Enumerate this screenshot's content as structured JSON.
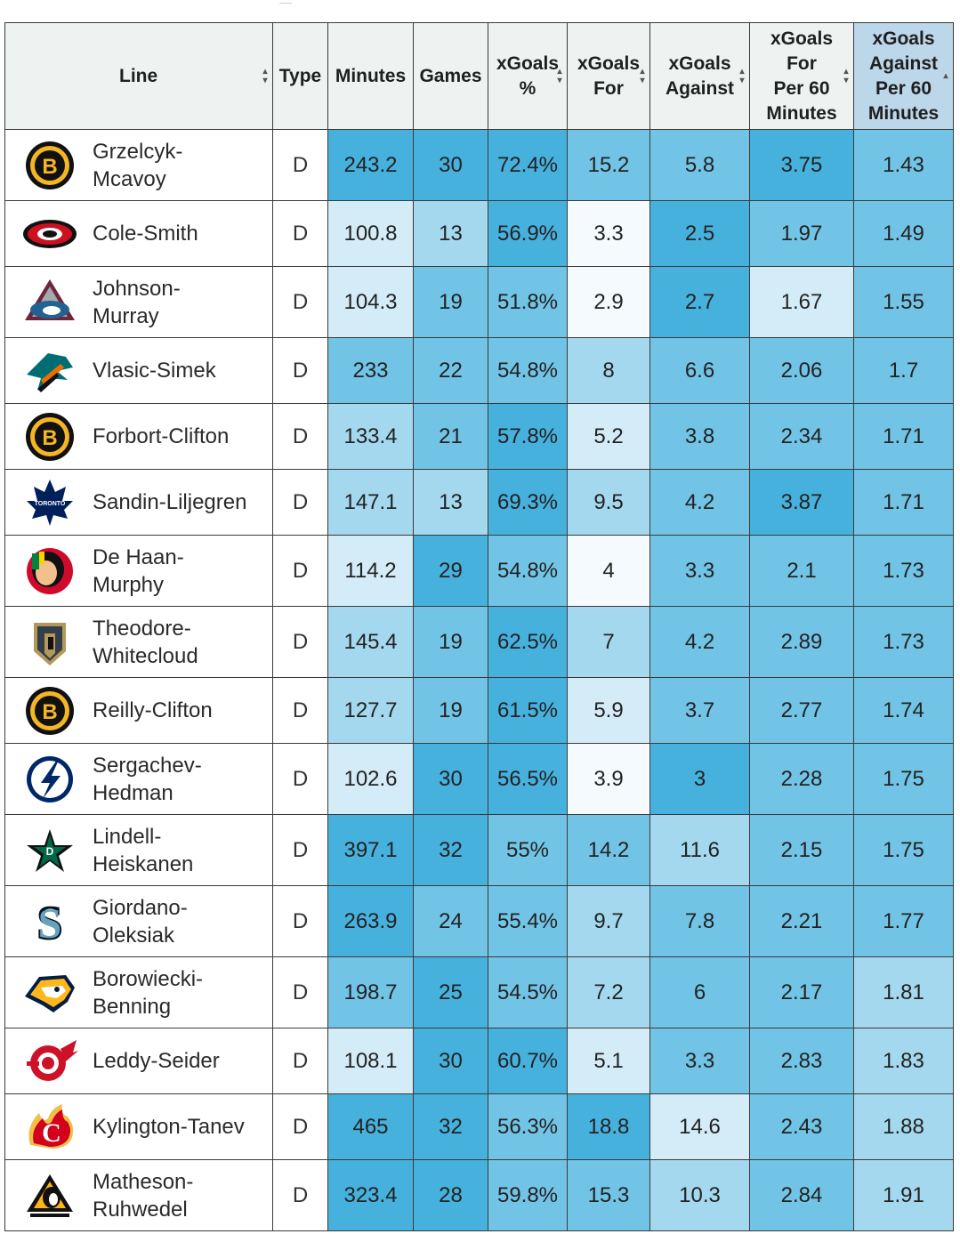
{
  "headers": {
    "line": "Line",
    "type": "Type",
    "minutes": "Minutes",
    "games": "Games",
    "xg_pct": [
      "xGoals",
      "%"
    ],
    "xg_for": [
      "xGoals",
      "For"
    ],
    "xg_against": [
      "xGoals",
      "Against"
    ],
    "xgf60": [
      "xGoals",
      "For",
      "Per 60",
      "Minutes"
    ],
    "xga60": [
      "xGoals",
      "Against",
      "Per 60",
      "Minutes"
    ]
  },
  "sort_icons": {
    "both": "sort-icon",
    "asc": "sort-ascending-icon"
  },
  "sorted_column": "xga60",
  "colors": {
    "header_bg": "#eef3f1",
    "sorted_header_bg": "#bcd6ea",
    "heat_scale": [
      "#f4fafd",
      "#d4ecf7",
      "#a4d8ee",
      "#72c4e6",
      "#47b1de"
    ]
  },
  "rows": [
    {
      "team_icon": "boston-bruins-logo",
      "line": [
        "Grzelcyk-",
        "Mcavoy"
      ],
      "type": "D",
      "minutes": "243.2",
      "games": "30",
      "xg_pct": "72.4%",
      "xg_for": "15.2",
      "xg_against": "5.8",
      "xgf60": "3.75",
      "xga60": "1.43",
      "shade": [
        4,
        4,
        4,
        3,
        3,
        4,
        3
      ]
    },
    {
      "team_icon": "carolina-hurricanes-logo",
      "line": [
        "Cole-Smith"
      ],
      "type": "D",
      "minutes": "100.8",
      "games": "13",
      "xg_pct": "56.9%",
      "xg_for": "3.3",
      "xg_against": "2.5",
      "xgf60": "1.97",
      "xga60": "1.49",
      "shade": [
        1,
        2,
        4,
        0,
        4,
        3,
        3
      ]
    },
    {
      "team_icon": "colorado-avalanche-logo",
      "line": [
        "Johnson-",
        "Murray"
      ],
      "type": "D",
      "minutes": "104.3",
      "games": "19",
      "xg_pct": "51.8%",
      "xg_for": "2.9",
      "xg_against": "2.7",
      "xgf60": "1.67",
      "xga60": "1.55",
      "shade": [
        1,
        3,
        3,
        0,
        4,
        1,
        3
      ]
    },
    {
      "team_icon": "san-jose-sharks-logo",
      "line": [
        "Vlasic-Simek"
      ],
      "type": "D",
      "minutes": "233",
      "games": "22",
      "xg_pct": "54.8%",
      "xg_for": "8",
      "xg_against": "6.6",
      "xgf60": "2.06",
      "xga60": "1.7",
      "shade": [
        3,
        3,
        3,
        2,
        3,
        3,
        3
      ]
    },
    {
      "team_icon": "boston-bruins-logo",
      "line": [
        "Forbort-Clifton"
      ],
      "type": "D",
      "minutes": "133.4",
      "games": "21",
      "xg_pct": "57.8%",
      "xg_for": "5.2",
      "xg_against": "3.8",
      "xgf60": "2.34",
      "xga60": "1.71",
      "shade": [
        2,
        3,
        4,
        1,
        3,
        3,
        3
      ]
    },
    {
      "team_icon": "toronto-maple-leafs-logo",
      "line": [
        "Sandin-Liljegren"
      ],
      "type": "D",
      "minutes": "147.1",
      "games": "13",
      "xg_pct": "69.3%",
      "xg_for": "9.5",
      "xg_against": "4.2",
      "xgf60": "3.87",
      "xga60": "1.71",
      "shade": [
        2,
        2,
        4,
        2,
        3,
        4,
        3
      ]
    },
    {
      "team_icon": "chicago-blackhawks-logo",
      "line": [
        "De Haan-",
        "Murphy"
      ],
      "type": "D",
      "minutes": "114.2",
      "games": "29",
      "xg_pct": "54.8%",
      "xg_for": "4",
      "xg_against": "3.3",
      "xgf60": "2.1",
      "xga60": "1.73",
      "shade": [
        1,
        4,
        3,
        0,
        3,
        3,
        3
      ]
    },
    {
      "team_icon": "vegas-golden-knights-logo",
      "line": [
        "Theodore-",
        "Whitecloud"
      ],
      "type": "D",
      "minutes": "145.4",
      "games": "19",
      "xg_pct": "62.5%",
      "xg_for": "7",
      "xg_against": "4.2",
      "xgf60": "2.89",
      "xga60": "1.73",
      "shade": [
        2,
        3,
        4,
        2,
        3,
        3,
        3
      ]
    },
    {
      "team_icon": "boston-bruins-logo",
      "line": [
        "Reilly-Clifton"
      ],
      "type": "D",
      "minutes": "127.7",
      "games": "19",
      "xg_pct": "61.5%",
      "xg_for": "5.9",
      "xg_against": "3.7",
      "xgf60": "2.77",
      "xga60": "1.74",
      "shade": [
        2,
        3,
        4,
        1,
        3,
        3,
        3
      ]
    },
    {
      "team_icon": "tampa-bay-lightning-logo",
      "line": [
        "Sergachev-",
        "Hedman"
      ],
      "type": "D",
      "minutes": "102.6",
      "games": "30",
      "xg_pct": "56.5%",
      "xg_for": "3.9",
      "xg_against": "3",
      "xgf60": "2.28",
      "xga60": "1.75",
      "shade": [
        1,
        4,
        4,
        0,
        4,
        3,
        3
      ]
    },
    {
      "team_icon": "dallas-stars-logo",
      "line": [
        "Lindell-",
        "Heiskanen"
      ],
      "type": "D",
      "minutes": "397.1",
      "games": "32",
      "xg_pct": "55%",
      "xg_for": "14.2",
      "xg_against": "11.6",
      "xgf60": "2.15",
      "xga60": "1.75",
      "shade": [
        4,
        4,
        3,
        3,
        2,
        3,
        3
      ]
    },
    {
      "team_icon": "seattle-kraken-logo",
      "line": [
        "Giordano-",
        "Oleksiak"
      ],
      "type": "D",
      "minutes": "263.9",
      "games": "24",
      "xg_pct": "55.4%",
      "xg_for": "9.7",
      "xg_against": "7.8",
      "xgf60": "2.21",
      "xga60": "1.77",
      "shade": [
        4,
        3,
        3,
        2,
        3,
        3,
        3
      ]
    },
    {
      "team_icon": "nashville-predators-logo",
      "line": [
        "Borowiecki-",
        "Benning"
      ],
      "type": "D",
      "minutes": "198.7",
      "games": "25",
      "xg_pct": "54.5%",
      "xg_for": "7.2",
      "xg_against": "6",
      "xgf60": "2.17",
      "xga60": "1.81",
      "shade": [
        3,
        4,
        3,
        2,
        3,
        3,
        2
      ]
    },
    {
      "team_icon": "detroit-red-wings-logo",
      "line": [
        "Leddy-Seider"
      ],
      "type": "D",
      "minutes": "108.1",
      "games": "30",
      "xg_pct": "60.7%",
      "xg_for": "5.1",
      "xg_against": "3.3",
      "xgf60": "2.83",
      "xga60": "1.83",
      "shade": [
        1,
        4,
        4,
        1,
        3,
        3,
        2
      ]
    },
    {
      "team_icon": "calgary-flames-logo",
      "line": [
        "Kylington-Tanev"
      ],
      "type": "D",
      "minutes": "465",
      "games": "32",
      "xg_pct": "56.3%",
      "xg_for": "18.8",
      "xg_against": "14.6",
      "xgf60": "2.43",
      "xga60": "1.88",
      "shade": [
        4,
        4,
        3,
        4,
        1,
        3,
        2
      ]
    },
    {
      "team_icon": "pittsburgh-penguins-logo",
      "line": [
        "Matheson-",
        "Ruhwedel"
      ],
      "type": "D",
      "minutes": "323.4",
      "games": "28",
      "xg_pct": "59.8%",
      "xg_for": "15.3",
      "xg_against": "10.3",
      "xgf60": "2.84",
      "xga60": "1.91",
      "shade": [
        4,
        4,
        3,
        3,
        2,
        3,
        2
      ]
    }
  ]
}
